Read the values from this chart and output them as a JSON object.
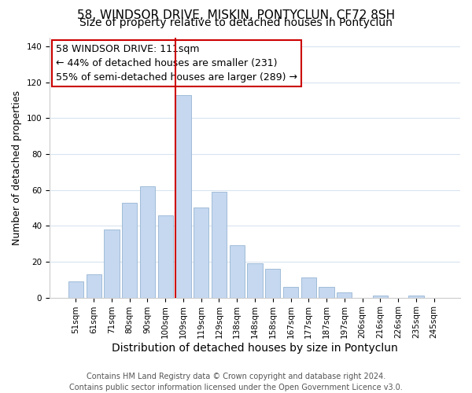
{
  "title": "58, WINDSOR DRIVE, MISKIN, PONTYCLUN, CF72 8SH",
  "subtitle": "Size of property relative to detached houses in Pontyclun",
  "xlabel": "Distribution of detached houses by size in Pontyclun",
  "ylabel": "Number of detached properties",
  "bar_labels": [
    "51sqm",
    "61sqm",
    "71sqm",
    "80sqm",
    "90sqm",
    "100sqm",
    "109sqm",
    "119sqm",
    "129sqm",
    "138sqm",
    "148sqm",
    "158sqm",
    "167sqm",
    "177sqm",
    "187sqm",
    "197sqm",
    "206sqm",
    "216sqm",
    "226sqm",
    "235sqm",
    "245sqm"
  ],
  "bar_values": [
    9,
    13,
    38,
    53,
    62,
    46,
    113,
    50,
    59,
    29,
    19,
    16,
    6,
    11,
    6,
    3,
    0,
    1,
    0,
    1,
    0
  ],
  "bar_color": "#c5d8f0",
  "bar_edge_color": "#a0bcd8",
  "vline_index": 6,
  "vline_color": "#cc0000",
  "ylim": [
    0,
    145
  ],
  "yticks": [
    0,
    20,
    40,
    60,
    80,
    100,
    120,
    140
  ],
  "annotation_title": "58 WINDSOR DRIVE: 111sqm",
  "annotation_line1": "← 44% of detached houses are smaller (231)",
  "annotation_line2": "55% of semi-detached houses are larger (289) →",
  "annotation_box_color": "#ffffff",
  "annotation_box_edge": "#cc0000",
  "footer1": "Contains HM Land Registry data © Crown copyright and database right 2024.",
  "footer2": "Contains public sector information licensed under the Open Government Licence v3.0.",
  "bg_color": "#ffffff",
  "grid_color": "#d8e4f0",
  "title_fontsize": 11,
  "subtitle_fontsize": 10,
  "xlabel_fontsize": 10,
  "ylabel_fontsize": 9,
  "tick_fontsize": 7.5,
  "annotation_fontsize": 9,
  "footer_fontsize": 7
}
